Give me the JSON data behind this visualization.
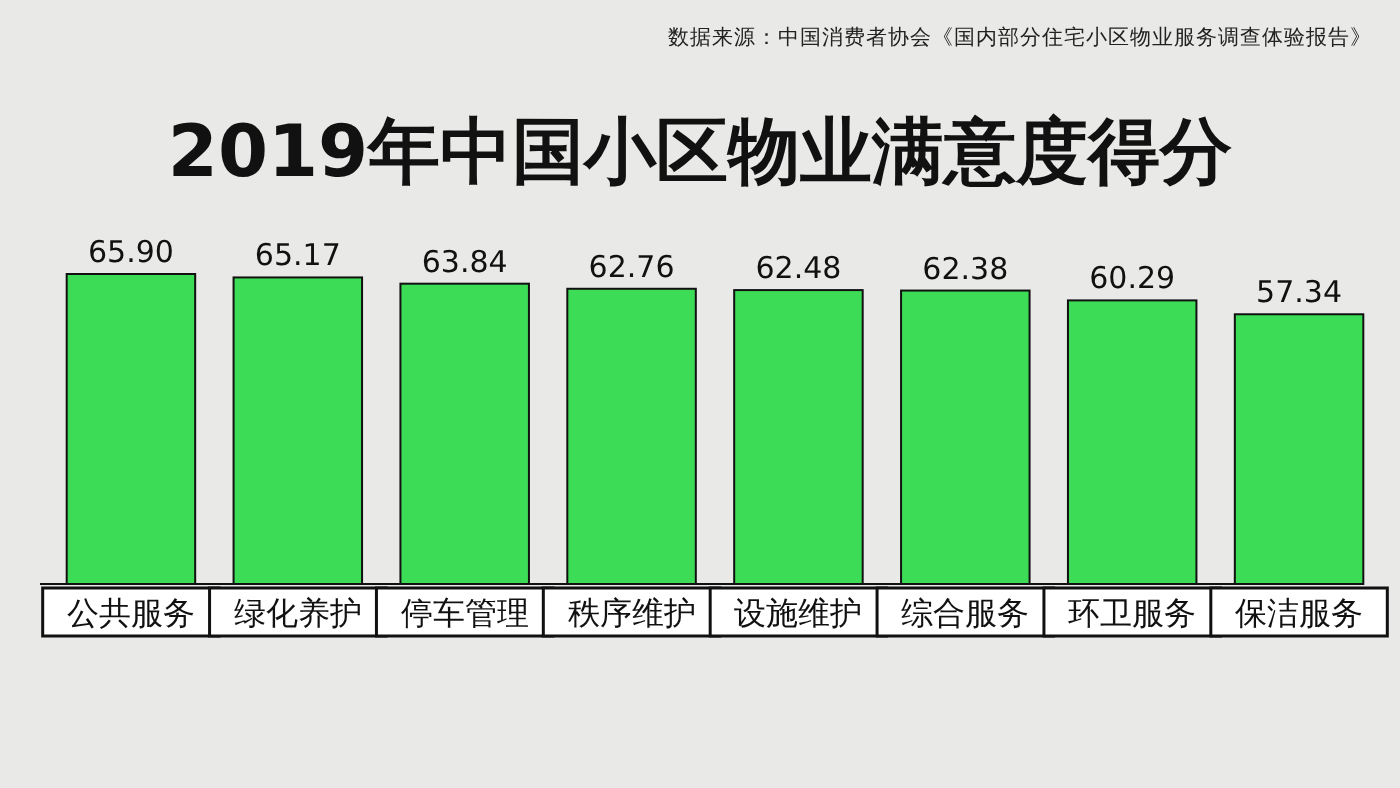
{
  "chart_data": {
    "type": "bar",
    "title": "2019年中国小区物业满意度得分",
    "annotations": [
      "数据来源：中国消费者协会《国内部分住宅小区物业服务调查体验报告》"
    ],
    "categories": [
      "公共服务",
      "绿化养护",
      "停车管理",
      "秩序维护",
      "设施维护",
      "综合服务",
      "环卫服务",
      "保洁服务"
    ],
    "values": [
      65.9,
      65.17,
      63.84,
      62.76,
      62.48,
      62.38,
      60.29,
      57.34
    ],
    "value_labels": [
      "65.90",
      "65.17",
      "63.84",
      "62.76",
      "62.48",
      "62.38",
      "60.29",
      "57.34"
    ],
    "color": "#3ddc57"
  }
}
